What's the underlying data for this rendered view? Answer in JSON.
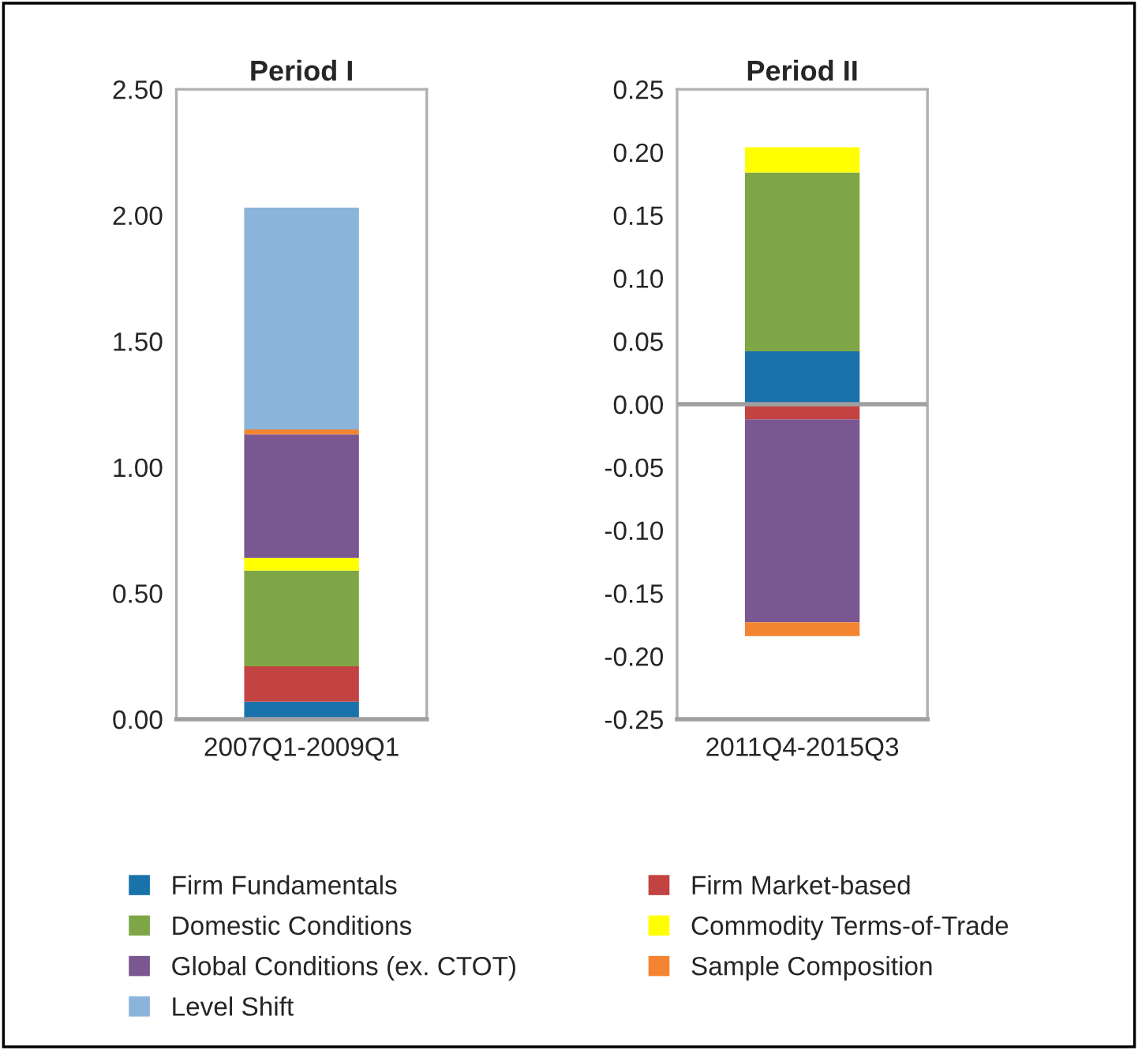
{
  "chart_data": [
    {
      "type": "bar",
      "title": "Period I",
      "categories": [
        "2007Q1-2009Q1"
      ],
      "stacked": true,
      "legend": "bottom",
      "grid": false,
      "ylim": [
        0,
        2.5
      ],
      "yticks": [
        {
          "value": 0,
          "label": "0.00"
        },
        {
          "value": 0.5,
          "label": "0.50"
        },
        {
          "value": 1,
          "label": "1.00"
        },
        {
          "value": 1.5,
          "label": "1.50"
        },
        {
          "value": 2,
          "label": "2.00"
        },
        {
          "value": 2.5,
          "label": "2.50"
        }
      ],
      "series": [
        {
          "name": "Firm Fundamentals",
          "color": "#1a72ab",
          "values": [
            0.07
          ]
        },
        {
          "name": "Firm Market-based",
          "color": "#c34342",
          "values": [
            0.14
          ]
        },
        {
          "name": "Domestic Conditions",
          "color": "#7fa646",
          "values": [
            0.38
          ]
        },
        {
          "name": "Commodity Terms-of-Trade",
          "color": "#ffff00",
          "values": [
            0.05
          ]
        },
        {
          "name": "Global Conditions (ex. CTOT)",
          "color": "#7a5791",
          "values": [
            0.49
          ]
        },
        {
          "name": "Sample Composition",
          "color": "#f38531",
          "values": [
            0.02
          ]
        },
        {
          "name": "Level Shift",
          "color": "#8ab4da",
          "values": [
            0.88
          ]
        }
      ]
    },
    {
      "type": "bar",
      "title": "Period II",
      "categories": [
        "2011Q4-2015Q3"
      ],
      "stacked": true,
      "grid": false,
      "ref_lines": [
        {
          "axis": "y",
          "value": 0,
          "color": "#a0a0a0"
        }
      ],
      "ylim": [
        -0.25,
        0.25
      ],
      "yticks": [
        {
          "value": -0.25,
          "label": "-0.25"
        },
        {
          "value": -0.2,
          "label": "-0.20"
        },
        {
          "value": -0.15,
          "label": "-0.15"
        },
        {
          "value": -0.1,
          "label": "-0.10"
        },
        {
          "value": -0.05,
          "label": "-0.05"
        },
        {
          "value": 0,
          "label": "0.00"
        },
        {
          "value": 0.05,
          "label": "0.05"
        },
        {
          "value": 0.1,
          "label": "0.10"
        },
        {
          "value": 0.15,
          "label": "0.15"
        },
        {
          "value": 0.2,
          "label": "0.20"
        },
        {
          "value": 0.25,
          "label": "0.25"
        }
      ],
      "series": [
        {
          "color": "#1a72ab",
          "values": [
            0.042
          ]
        },
        {
          "color": "#c34342",
          "values": [
            -0.012
          ]
        },
        {
          "color": "#7fa646",
          "values": [
            0.142
          ]
        },
        {
          "color": "#ffff00",
          "values": [
            0.02
          ]
        },
        {
          "color": "#7a5791",
          "values": [
            -0.161
          ]
        },
        {
          "color": "#f38531",
          "values": [
            -0.011
          ]
        }
      ]
    }
  ]
}
